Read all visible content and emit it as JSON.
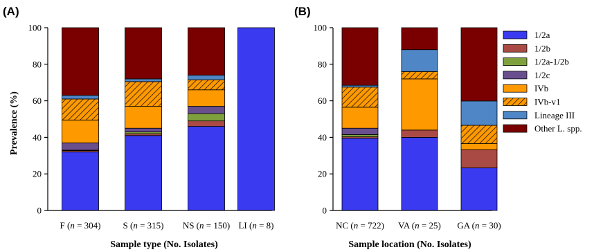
{
  "series_colors": {
    "1/2a": "#3a3af0",
    "1/2b": "#a94a44",
    "1/2a-1/2b": "#7ea13e",
    "1/2c": "#6a4f8e",
    "IVb": "#ff9900",
    "IVb-v1": "#ff9900",
    "Lineage III": "#4f86c6",
    "Other L. spp.": "#7a0000"
  },
  "hatched_series": [
    "IVb-v1"
  ],
  "legend": [
    "1/2a",
    "1/2b",
    "1/2a-1/2b",
    "1/2c",
    "IVb",
    "IVb-v1",
    "Lineage III",
    "Other L. spp."
  ],
  "chart_data": [
    {
      "type": "bar",
      "stacked": true,
      "panel": "(A)",
      "xlabel": "Sample type (No. Isolates)",
      "ylabel": "Prevalence (%)",
      "ylim": [
        0,
        100
      ],
      "yticks": [
        0,
        20,
        40,
        60,
        80,
        100
      ],
      "categories": [
        "F",
        "S",
        "NS",
        "LI"
      ],
      "n": [
        "304",
        "315",
        "150",
        "8"
      ],
      "series": [
        {
          "name": "1/2a",
          "values": [
            32,
            41,
            46,
            100
          ]
        },
        {
          "name": "1/2b",
          "values": [
            0.7,
            1,
            3,
            0
          ]
        },
        {
          "name": "1/2a-1/2b",
          "values": [
            0.3,
            1,
            4,
            0
          ]
        },
        {
          "name": "1/2c",
          "values": [
            4,
            2,
            4,
            0
          ]
        },
        {
          "name": "IVb",
          "values": [
            12.5,
            12,
            9,
            0
          ]
        },
        {
          "name": "IVb-v1",
          "values": [
            11.5,
            13.5,
            5.5,
            0
          ]
        },
        {
          "name": "Lineage III",
          "values": [
            2,
            1.5,
            2.5,
            0
          ]
        },
        {
          "name": "Other L. spp.",
          "values": [
            37,
            28,
            26,
            0
          ]
        }
      ]
    },
    {
      "type": "bar",
      "stacked": true,
      "panel": "(B)",
      "xlabel": "Sample location (No. Isolates)",
      "ylabel": "",
      "ylim": [
        0,
        100
      ],
      "yticks": [
        0,
        20,
        40,
        60,
        80,
        100
      ],
      "categories": [
        "NC",
        "VA",
        "GA"
      ],
      "n": [
        "722",
        "25",
        "30"
      ],
      "series": [
        {
          "name": "1/2a",
          "values": [
            39.5,
            40,
            23.3
          ]
        },
        {
          "name": "1/2b",
          "values": [
            0.8,
            4,
            10
          ]
        },
        {
          "name": "1/2a-1/2b",
          "values": [
            1.2,
            0,
            0
          ]
        },
        {
          "name": "1/2c",
          "values": [
            3.5,
            0,
            0
          ]
        },
        {
          "name": "IVb",
          "values": [
            11.5,
            28,
            3.3
          ]
        },
        {
          "name": "IVb-v1",
          "values": [
            11,
            4,
            10
          ]
        },
        {
          "name": "Lineage III",
          "values": [
            1,
            12,
            13.3
          ]
        },
        {
          "name": "Other L. spp.",
          "values": [
            31.5,
            12,
            40.1
          ]
        }
      ]
    }
  ]
}
